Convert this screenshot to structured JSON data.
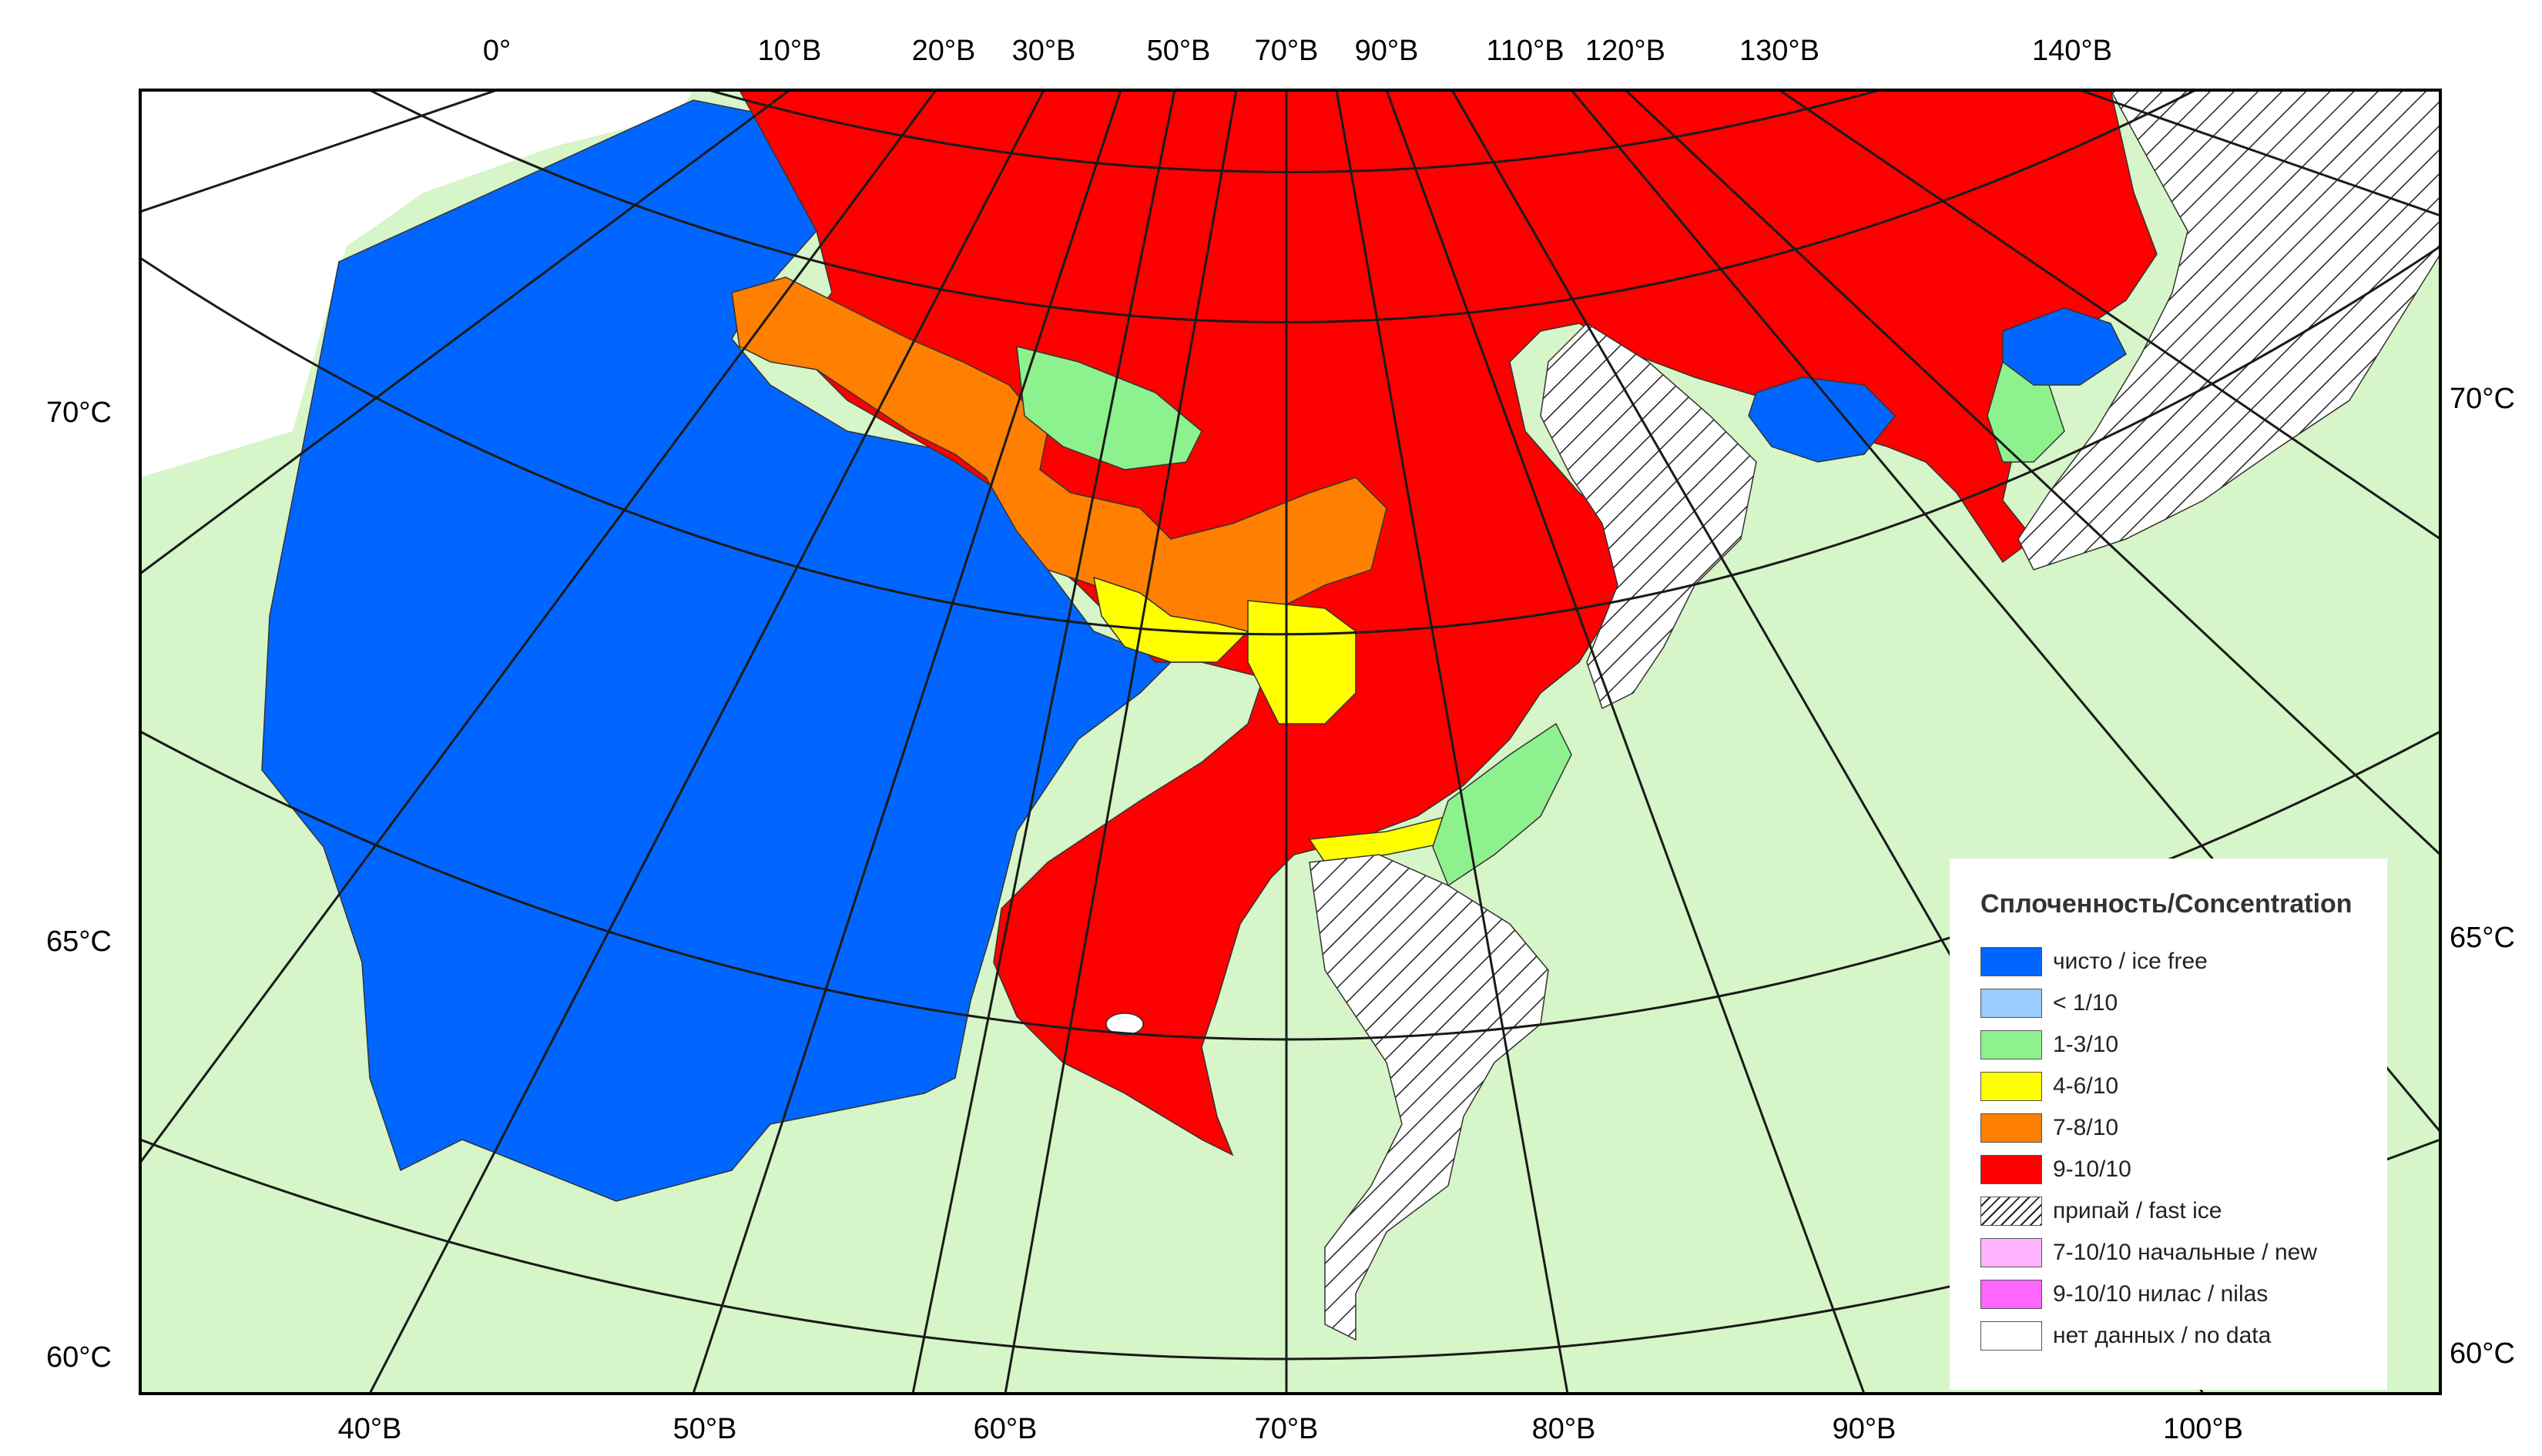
{
  "legend": {
    "title": "Сплоченность/Concentration",
    "items": [
      {
        "label": "чисто / ice free",
        "color": "#0066ff"
      },
      {
        "label": "< 1/10",
        "color": "#99ccff"
      },
      {
        "label": "1-3/10",
        "color": "#8df28d"
      },
      {
        "label": "4-6/10",
        "color": "#ffff00"
      },
      {
        "label": "7-8/10",
        "color": "#ff7f00"
      },
      {
        "label": "9-10/10",
        "color": "#ff0000"
      },
      {
        "label": "припай / fast ice",
        "color": "hatched"
      },
      {
        "label": "7-10/10 начальные / new",
        "color": "#ffb3ff"
      },
      {
        "label": "9-10/10 нилас / nilas",
        "color": "#ff66ff"
      },
      {
        "label": "нет данных / no data",
        "color": "#ffffff"
      }
    ]
  },
  "colors": {
    "land": "#d6f5c8",
    "ice_free": "#0066ff",
    "ice_1_3": "#8df28d",
    "ice_4_6": "#ffff00",
    "ice_7_8": "#ff7f00",
    "ice_9_10": "#ff0000",
    "no_data": "#ffffff"
  },
  "axes": {
    "top": [
      "0°",
      "10°В",
      "20°В",
      "30°В",
      "50°В",
      "70°В",
      "90°В",
      "110°В",
      "120°В",
      "130°В",
      "140°В"
    ],
    "bottom": [
      "40°В",
      "50°В",
      "60°В",
      "70°В",
      "80°В",
      "90°В",
      "100°В"
    ],
    "left": [
      "70°С",
      "65°С",
      "60°С"
    ],
    "right": [
      "70°С",
      "65°С",
      "60°С"
    ]
  }
}
